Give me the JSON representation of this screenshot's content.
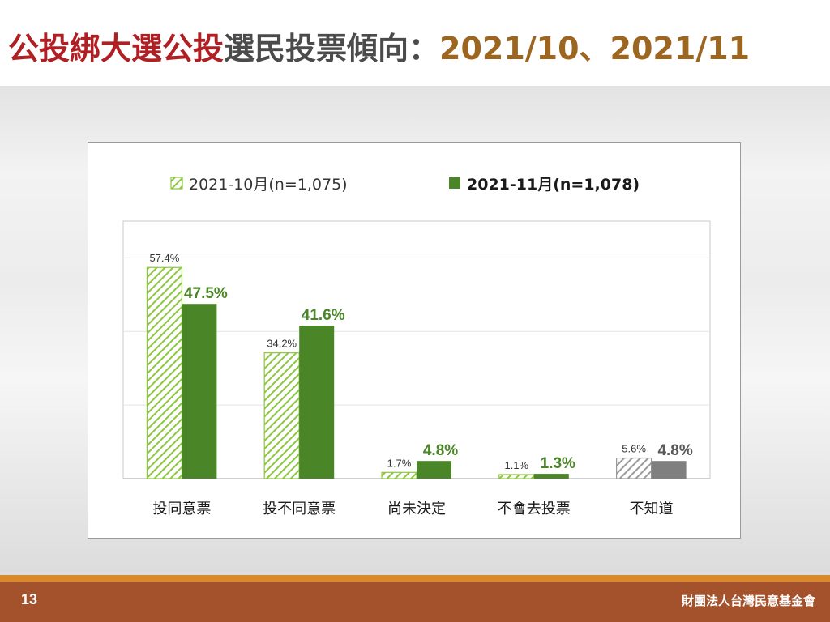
{
  "title": {
    "part1": "公投綁大選公投",
    "part2": "選民投票傾向：",
    "part3": "2021/10、2021/11",
    "colors": {
      "part1": "#b01f24",
      "part2": "#4b4b4b",
      "part3": "#9c6520"
    }
  },
  "chart_data": {
    "type": "bar",
    "categories": [
      "投同意票",
      "投不同意票",
      "尚未決定",
      "不會去投票",
      "不知道"
    ],
    "series": [
      {
        "name": "2021-10月(n=1,075)",
        "values": [
          57.4,
          34.2,
          1.7,
          1.1,
          5.6
        ],
        "labels": [
          "57.4%",
          "34.2%",
          "1.7%",
          "1.1%",
          "5.6%"
        ],
        "pattern": "hatched",
        "color": "#8cc63f"
      },
      {
        "name": "2021-11月(n=1,078)",
        "values": [
          47.5,
          41.6,
          4.8,
          1.3,
          4.8
        ],
        "labels": [
          "47.5%",
          "41.6%",
          "4.8%",
          "1.3%",
          "4.8%"
        ],
        "pattern": "solid",
        "color": "#4a8527"
      }
    ],
    "highlight_category": "不知道",
    "highlight_color": "#7f7f7f",
    "ylim": [
      0,
      70
    ],
    "grid": true,
    "legend": "top"
  },
  "footer": {
    "page_number": "13",
    "organization": "財團法人台灣民意基金會"
  }
}
